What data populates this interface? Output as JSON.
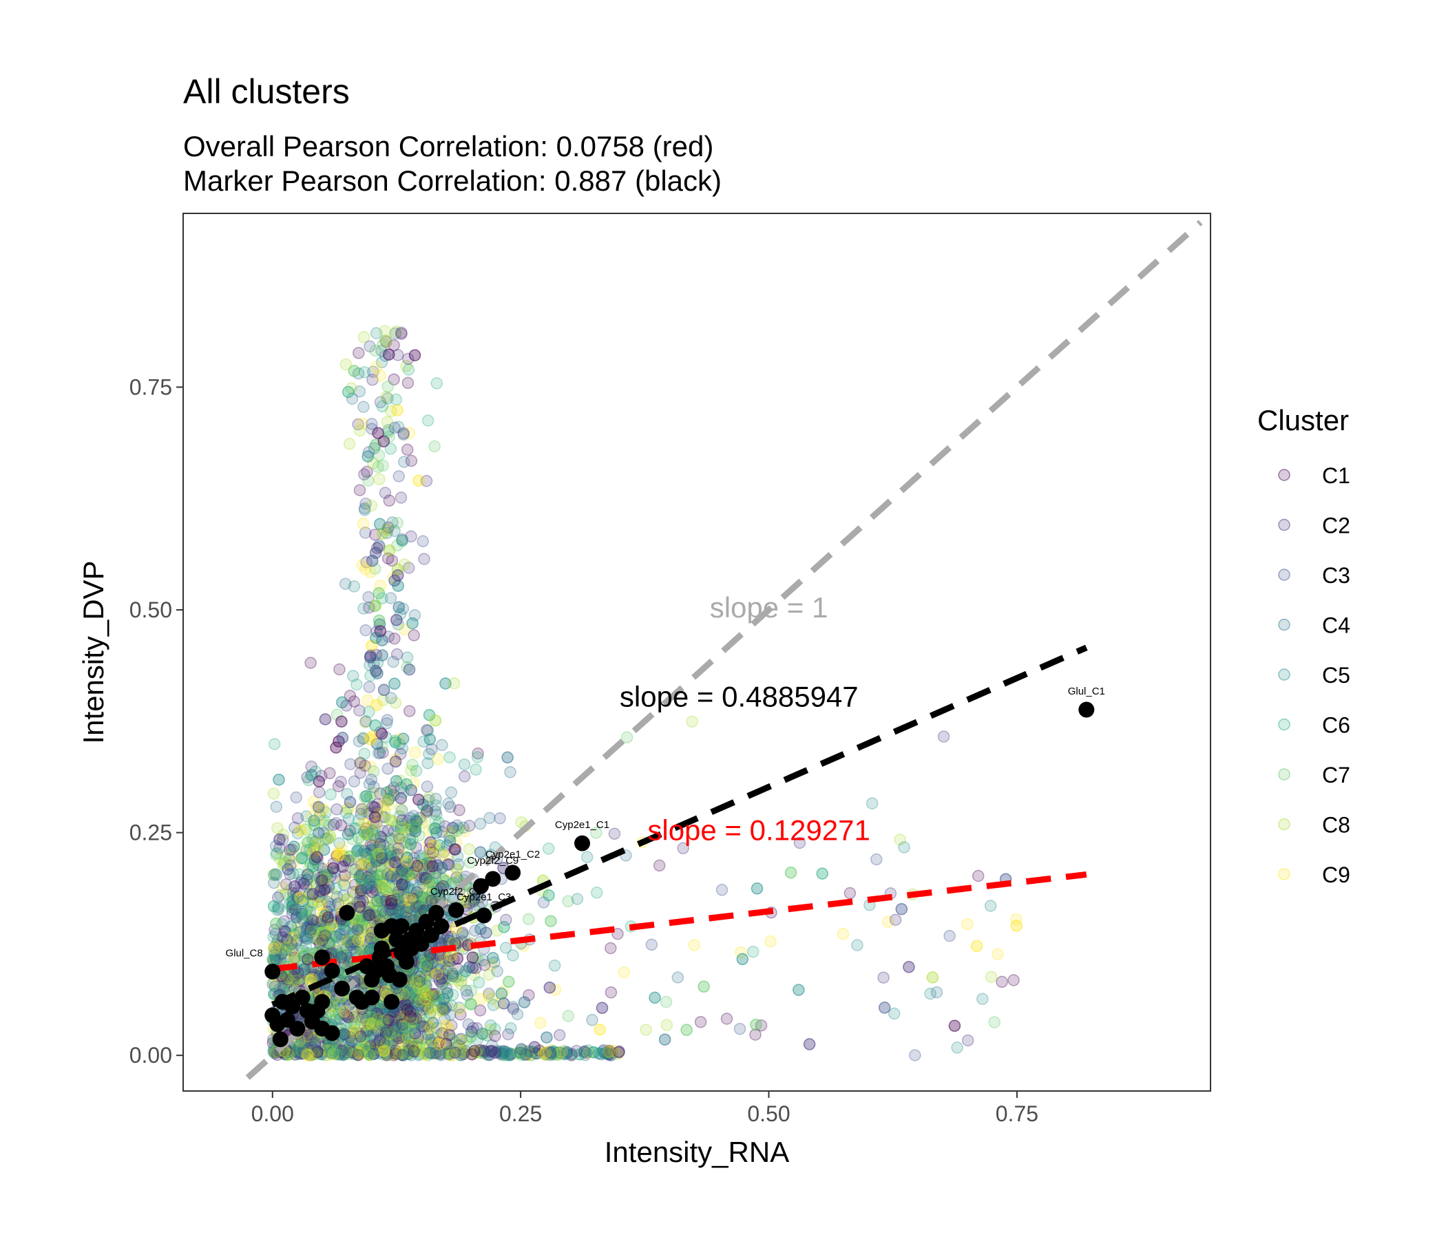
{
  "chart_data": {
    "type": "scatter",
    "title": "All clusters",
    "subtitle_lines": [
      "Overall Pearson Correlation: 0.0758 (red)",
      "Marker Pearson Correlation: 0.887 (black)"
    ],
    "xlabel": "Intensity_RNA",
    "ylabel": "Intensity_DVP",
    "xlim": [
      -0.09,
      0.945
    ],
    "ylim": [
      -0.04,
      0.945
    ],
    "xticks": [
      0.0,
      0.25,
      0.5,
      0.75
    ],
    "xtick_labels": [
      "0.00",
      "0.25",
      "0.50",
      "0.75"
    ],
    "yticks": [
      0.0,
      0.25,
      0.5,
      0.75
    ],
    "ytick_labels": [
      "0.00",
      "0.25",
      "0.50",
      "0.75"
    ],
    "grid": false,
    "legend": {
      "title": "Cluster",
      "placement": "right",
      "entries": [
        "C1",
        "C2",
        "C3",
        "C4",
        "C5",
        "C6",
        "C7",
        "C8",
        "C9"
      ],
      "colors": [
        "#440154",
        "#472D7B",
        "#3B528B",
        "#2C728E",
        "#21908C",
        "#27AD81",
        "#5DC863",
        "#AADC32",
        "#FDE725"
      ]
    },
    "reference_lines": [
      {
        "label": "slope = 1",
        "slope": 1.0,
        "intercept": 0.0,
        "x_range": [
          -0.025,
          0.935
        ],
        "color": "#AAAAAA",
        "label_pos": [
          0.5,
          0.5
        ]
      },
      {
        "label": "slope = 0.4885947",
        "slope": 0.4885947,
        "intercept": 0.057,
        "x_range": [
          0.0,
          0.82
        ],
        "color": "#000000",
        "label_pos": [
          0.47,
          0.4
        ]
      },
      {
        "label": "slope = 0.129271",
        "slope": 0.129271,
        "intercept": 0.097,
        "x_range": [
          0.0,
          0.82
        ],
        "color": "#FF0000",
        "label_pos": [
          0.49,
          0.25
        ]
      }
    ],
    "marker_points": [
      {
        "x": 0.0,
        "y": 0.094,
        "label": "Glul_C8"
      },
      {
        "x": 0.312,
        "y": 0.238,
        "label": "Cyp2e1_C1"
      },
      {
        "x": 0.222,
        "y": 0.198,
        "label": "Cyp2f2_C9"
      },
      {
        "x": 0.242,
        "y": 0.205,
        "label": "Cyp2e1_C2"
      },
      {
        "x": 0.185,
        "y": 0.163,
        "label": "Cyp2f2_C8"
      },
      {
        "x": 0.213,
        "y": 0.157,
        "label": "Cyp2e1_C3"
      },
      {
        "x": 0.82,
        "y": 0.388,
        "label": "Glul_C1"
      },
      {
        "x": 0.21,
        "y": 0.19
      },
      {
        "x": 0.0,
        "y": 0.045
      },
      {
        "x": 0.01,
        "y": 0.06
      },
      {
        "x": 0.02,
        "y": 0.055
      },
      {
        "x": 0.005,
        "y": 0.035
      },
      {
        "x": 0.03,
        "y": 0.065
      },
      {
        "x": 0.015,
        "y": 0.04
      },
      {
        "x": 0.008,
        "y": 0.018
      },
      {
        "x": 0.04,
        "y": 0.038
      },
      {
        "x": 0.05,
        "y": 0.03
      },
      {
        "x": 0.045,
        "y": 0.05
      },
      {
        "x": 0.05,
        "y": 0.06
      },
      {
        "x": 0.06,
        "y": 0.095
      },
      {
        "x": 0.05,
        "y": 0.11
      },
      {
        "x": 0.07,
        "y": 0.075
      },
      {
        "x": 0.075,
        "y": 0.16
      },
      {
        "x": 0.085,
        "y": 0.065
      },
      {
        "x": 0.09,
        "y": 0.06
      },
      {
        "x": 0.1,
        "y": 0.085
      },
      {
        "x": 0.1,
        "y": 0.065
      },
      {
        "x": 0.105,
        "y": 0.095
      },
      {
        "x": 0.11,
        "y": 0.12
      },
      {
        "x": 0.11,
        "y": 0.14
      },
      {
        "x": 0.115,
        "y": 0.1
      },
      {
        "x": 0.12,
        "y": 0.06
      },
      {
        "x": 0.12,
        "y": 0.145
      },
      {
        "x": 0.125,
        "y": 0.13
      },
      {
        "x": 0.13,
        "y": 0.115
      },
      {
        "x": 0.13,
        "y": 0.145
      },
      {
        "x": 0.135,
        "y": 0.105
      },
      {
        "x": 0.14,
        "y": 0.12
      },
      {
        "x": 0.145,
        "y": 0.14
      },
      {
        "x": 0.15,
        "y": 0.125
      },
      {
        "x": 0.155,
        "y": 0.15
      },
      {
        "x": 0.16,
        "y": 0.135
      },
      {
        "x": 0.165,
        "y": 0.16
      },
      {
        "x": 0.17,
        "y": 0.145
      },
      {
        "x": 0.118,
        "y": 0.09
      },
      {
        "x": 0.108,
        "y": 0.11
      },
      {
        "x": 0.128,
        "y": 0.085
      },
      {
        "x": 0.138,
        "y": 0.13
      },
      {
        "x": 0.025,
        "y": 0.03
      },
      {
        "x": 0.06,
        "y": 0.025
      },
      {
        "x": 0.035,
        "y": 0.05
      },
      {
        "x": 0.095,
        "y": 0.1
      }
    ]
  }
}
